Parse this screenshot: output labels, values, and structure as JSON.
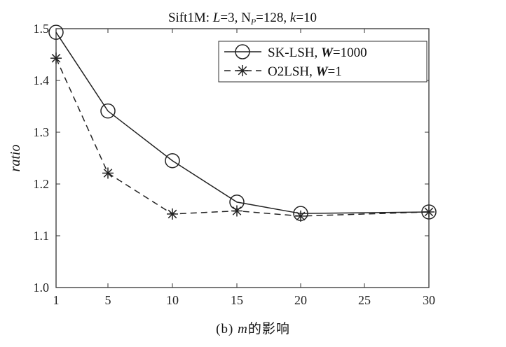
{
  "chart_data": {
    "type": "line",
    "title": "Sift1M: L=3, N_P=128, k=10",
    "title_parts": [
      "Sift1M: ",
      "L",
      "=3, N",
      "P",
      "=128, ",
      "k",
      "=10"
    ],
    "ylabel": "ratio",
    "x_ticks": [
      "1",
      "5",
      "10",
      "15",
      "20",
      "25",
      "30"
    ],
    "y_ticks": [
      "1.0",
      "1.1",
      "1.2",
      "1.3",
      "1.4",
      "1.5"
    ],
    "ylim": [
      1.0,
      1.5
    ],
    "grid": false,
    "legend_position": "top-right",
    "x": [
      1,
      5,
      10,
      15,
      20,
      30
    ],
    "series": [
      {
        "name": "SK-LSH, W=1000",
        "name_parts": [
          "SK-LSH, ",
          "W",
          "=1000"
        ],
        "marker": "circle",
        "line": "solid",
        "values": [
          1.493,
          1.341,
          1.245,
          1.165,
          1.143,
          1.146
        ]
      },
      {
        "name": "O2LSH, W=1",
        "name_parts": [
          "O2LSH, ",
          "W",
          "=1"
        ],
        "marker": "asterisk",
        "line": "dashed",
        "values": [
          1.443,
          1.221,
          1.142,
          1.148,
          1.138,
          1.146
        ]
      }
    ]
  },
  "caption": {
    "prefix": "(b) ",
    "var": "m",
    "suffix": "的影响"
  },
  "colors": {
    "line": "#222222",
    "axis": "#333333"
  }
}
